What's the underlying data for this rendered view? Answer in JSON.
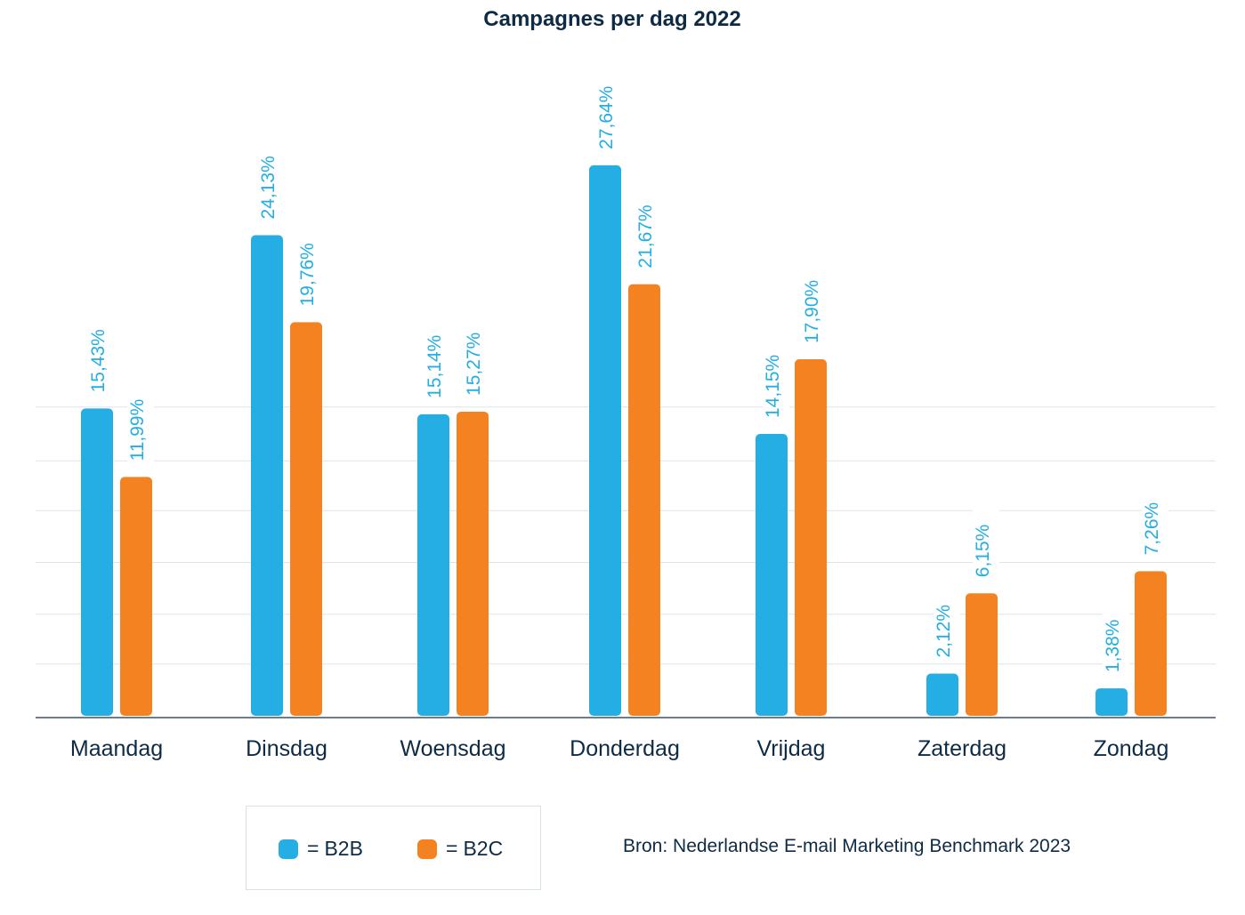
{
  "chart_data": {
    "type": "bar",
    "title": "Campagnes per dag 2022",
    "categories": [
      "Maandag",
      "Dinsdag",
      "Woensdag",
      "Donderdag",
      "Vrijdag",
      "Zaterdag",
      "Zondag"
    ],
    "series": [
      {
        "name": "B2B",
        "color": "#24aee3",
        "values": [
          15.43,
          24.13,
          15.14,
          27.64,
          14.15,
          2.12,
          1.38
        ],
        "labels": [
          "15,43%",
          "24,13%",
          "15,14%",
          "27,64%",
          "14,15%",
          "2,12%",
          "1,38%"
        ]
      },
      {
        "name": "B2C",
        "color": "#f58220",
        "values": [
          11.99,
          19.76,
          15.27,
          21.67,
          17.9,
          6.15,
          7.26
        ],
        "labels": [
          "11,99%",
          "19,76%",
          "15,27%",
          "21,67%",
          "17,90%",
          "6,15%",
          "7,26%"
        ]
      }
    ],
    "grid": true,
    "legend": "bottom-left",
    "label_color": "#24aee3"
  },
  "legend": {
    "b2b": "B2B",
    "b2c": "B2C",
    "equals": "="
  },
  "source": "Bron: Nederlandse E-mail Marketing Benchmark 2023"
}
